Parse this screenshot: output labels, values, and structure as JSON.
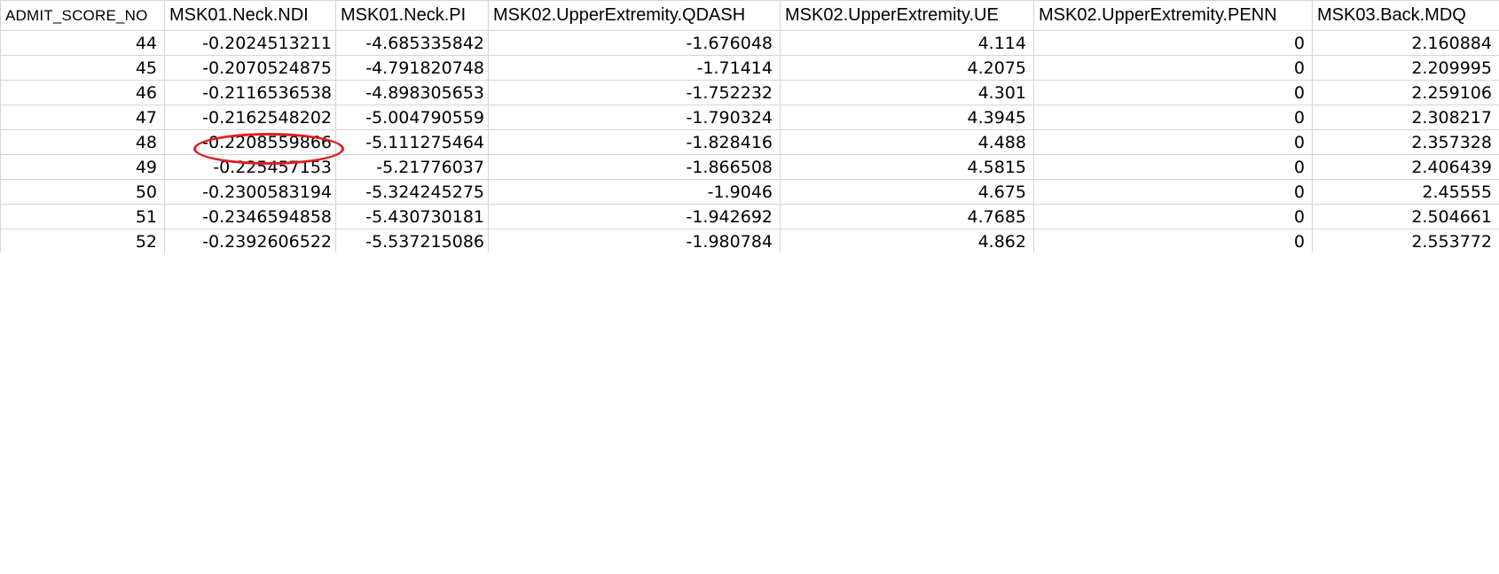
{
  "sheet": {
    "columns": [
      "ADMIT_SCORE_NO",
      "MSK01.Neck.NDI",
      "MSK01.Neck.PI",
      "MSK02.UpperExtremity.QDASH",
      "MSK02.UpperExtremity.UE",
      "MSK02.UpperExtremity.PENN",
      "MSK03.Back.MDQ"
    ],
    "rows": [
      [
        "44",
        "-0.2024513211",
        "-4.685335842",
        "-1.676048",
        "4.114",
        "0",
        "2.160884"
      ],
      [
        "45",
        "-0.2070524875",
        "-4.791820748",
        "-1.71414",
        "4.2075",
        "0",
        "2.209995"
      ],
      [
        "46",
        "-0.2116536538",
        "-4.898305653",
        "-1.752232",
        "4.301",
        "0",
        "2.259106"
      ],
      [
        "47",
        "-0.2162548202",
        "-5.004790559",
        "-1.790324",
        "4.3945",
        "0",
        "2.308217"
      ],
      [
        "48",
        "-0.2208559866",
        "-5.111275464",
        "-1.828416",
        "4.488",
        "0",
        "2.357328"
      ],
      [
        "49",
        "-0.225457153",
        "-5.21776037",
        "-1.866508",
        "4.5815",
        "0",
        "2.406439"
      ],
      [
        "50",
        "-0.2300583194",
        "-5.324245275",
        "-1.9046",
        "4.675",
        "0",
        "2.45555"
      ],
      [
        "51",
        "-0.2346594858",
        "-5.430730181",
        "-1.942692",
        "4.7685",
        "0",
        "2.504661"
      ],
      [
        "52",
        "-0.2392606522",
        "-5.537215086",
        "-1.980784",
        "4.862",
        "0",
        "2.553772"
      ]
    ]
  },
  "annotation": {
    "shape": "ellipse",
    "color": "#e21d1d",
    "highlighted_value": "-0.2208559866"
  }
}
